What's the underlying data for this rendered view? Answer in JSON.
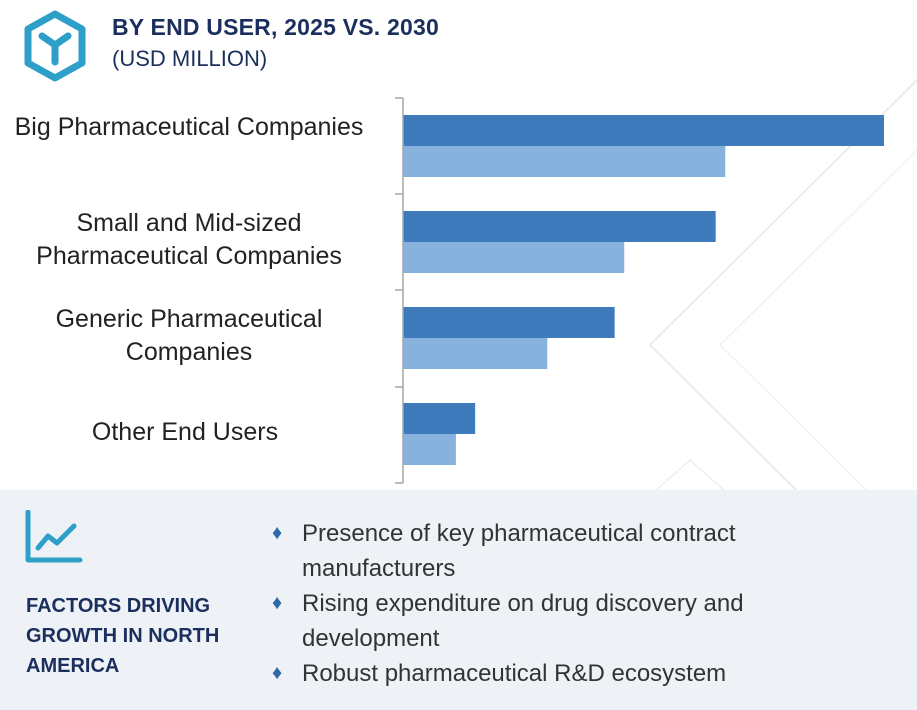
{
  "header": {
    "title": "BY END USER, 2025 VS. 2030",
    "subtitle": "(USD MILLION)",
    "logo_icon": "hexagon-y-logo-icon"
  },
  "colors": {
    "series_2030": "#3d7bbd",
    "series_2025": "#86b2dd",
    "heading": "#1b2f5e",
    "accent": "#2e9fc9",
    "panel": "#eef1f6"
  },
  "chart_data": {
    "type": "bar",
    "orientation": "horizontal",
    "categories": [
      "Big Pharmaceutical Companies",
      "Small and Mid-sized Pharmaceutical Companies",
      "Generic Pharmaceutical Companies",
      "Other End Users"
    ],
    "series": [
      {
        "values": [
          100,
          65,
          44,
          15
        ]
      },
      {
        "values": [
          67,
          46,
          30,
          11
        ]
      }
    ],
    "title": "BY END USER, 2025 VS. 2030",
    "subtitle": "(USD MILLION)",
    "xlim": [
      0,
      100
    ],
    "grid": false,
    "legend": "none"
  },
  "factors": {
    "icon": "line-chart-growth-icon",
    "heading": "FACTORS DRIVING GROWTH IN NORTH AMERICA",
    "items": [
      "Presence of key pharmaceutical contract manufacturers",
      "Rising expenditure on drug discovery and development",
      "Robust pharmaceutical R&D ecosystem"
    ]
  }
}
